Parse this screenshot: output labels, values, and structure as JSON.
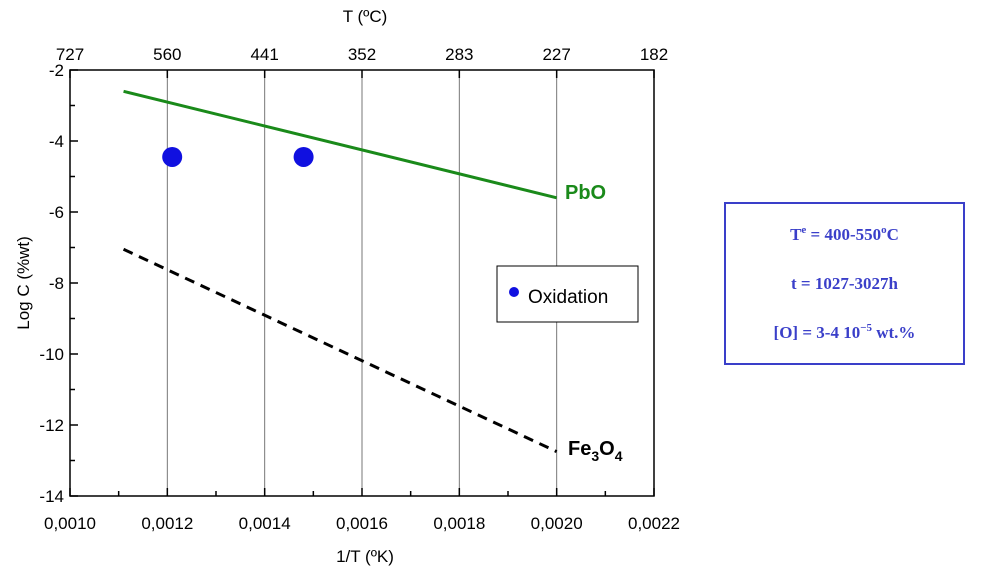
{
  "chart_data": {
    "type": "line",
    "xlabel": "1/T (ºK)",
    "ylabel": "Log C (%wt)",
    "top_axis_label": "T (ºC)",
    "xlim": [
      0.001,
      0.0022
    ],
    "ylim": [
      -14,
      -2
    ],
    "x_ticks": [
      "0,0010",
      "0,0012",
      "0,0014",
      "0,0016",
      "0,0018",
      "0,0020",
      "0,0022"
    ],
    "x_tick_values": [
      0.001,
      0.0012,
      0.0014,
      0.0016,
      0.0018,
      0.002,
      0.0022
    ],
    "y_ticks": [
      "-2",
      "-4",
      "-6",
      "-8",
      "-10",
      "-12",
      "-14"
    ],
    "y_tick_values": [
      -2,
      -4,
      -6,
      -8,
      -10,
      -12,
      -14
    ],
    "top_ticks": [
      "727",
      "560",
      "441",
      "352",
      "283",
      "227",
      "182"
    ],
    "grid_x": [
      0.0012,
      0.0014,
      0.0016,
      0.0018,
      0.002
    ],
    "series": [
      {
        "name": "PbO",
        "label_main": "PbO",
        "label_sub": "",
        "style": "solid",
        "color": "#1a8a1a",
        "x": [
          0.00111,
          0.002
        ],
        "y": [
          -2.6,
          -5.6
        ]
      },
      {
        "name": "Fe3O4",
        "label_main": "Fe",
        "label_sub1": "3",
        "label_mid": "O",
        "label_sub2": "4",
        "style": "dashed",
        "color": "#000000",
        "x": [
          0.00111,
          0.002
        ],
        "y": [
          -7.05,
          -12.75
        ]
      }
    ],
    "points": {
      "name": "Oxidation",
      "color": "#1010e0",
      "x": [
        0.00121,
        0.00148
      ],
      "y": [
        -4.45,
        -4.45
      ]
    },
    "legend": {
      "entries": [
        "Oxidation"
      ],
      "position": "inside-right"
    }
  },
  "conditions": {
    "temp_prefix": "T",
    "temp_sup": "e",
    "temp_value": " = 400-550",
    "temp_unit_sup": "o",
    "temp_unit": "C",
    "time": "t = 1027-3027h",
    "oxygen_prefix": "[O] = 3-4 10",
    "oxygen_sup": "−5",
    "oxygen_suffix": " wt.%"
  }
}
